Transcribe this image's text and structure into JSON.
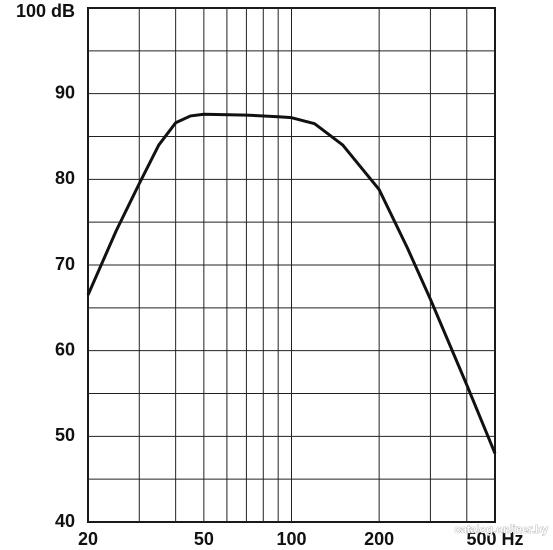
{
  "chart_data": {
    "type": "line",
    "xscale": "log",
    "xlim": [
      20,
      500
    ],
    "ylim": [
      40,
      100
    ],
    "xticks": [
      20,
      50,
      100,
      200,
      {
        "value": 500,
        "label": "500 Hz"
      }
    ],
    "yticks": [
      40,
      50,
      60,
      70,
      80,
      90,
      {
        "value": 100,
        "label": "100 dB"
      }
    ],
    "xgrid": [
      20,
      30,
      40,
      50,
      60,
      70,
      80,
      90,
      100,
      200,
      300,
      400,
      500
    ],
    "ygrid": [
      40,
      45,
      50,
      55,
      60,
      65,
      70,
      75,
      80,
      85,
      90,
      95,
      100
    ],
    "x": [
      20,
      25,
      30,
      35,
      40,
      45,
      50,
      70,
      90,
      100,
      120,
      150,
      200,
      250,
      300,
      400,
      500
    ],
    "series": [
      {
        "color": "#111111",
        "values": [
          66.5,
          74,
          79.5,
          84,
          86.6,
          87.4,
          87.6,
          87.5,
          87.3,
          87.2,
          86.5,
          84,
          78.8,
          72,
          66,
          56,
          48
        ]
      }
    ],
    "watermark": "catalog.onliner.by"
  }
}
